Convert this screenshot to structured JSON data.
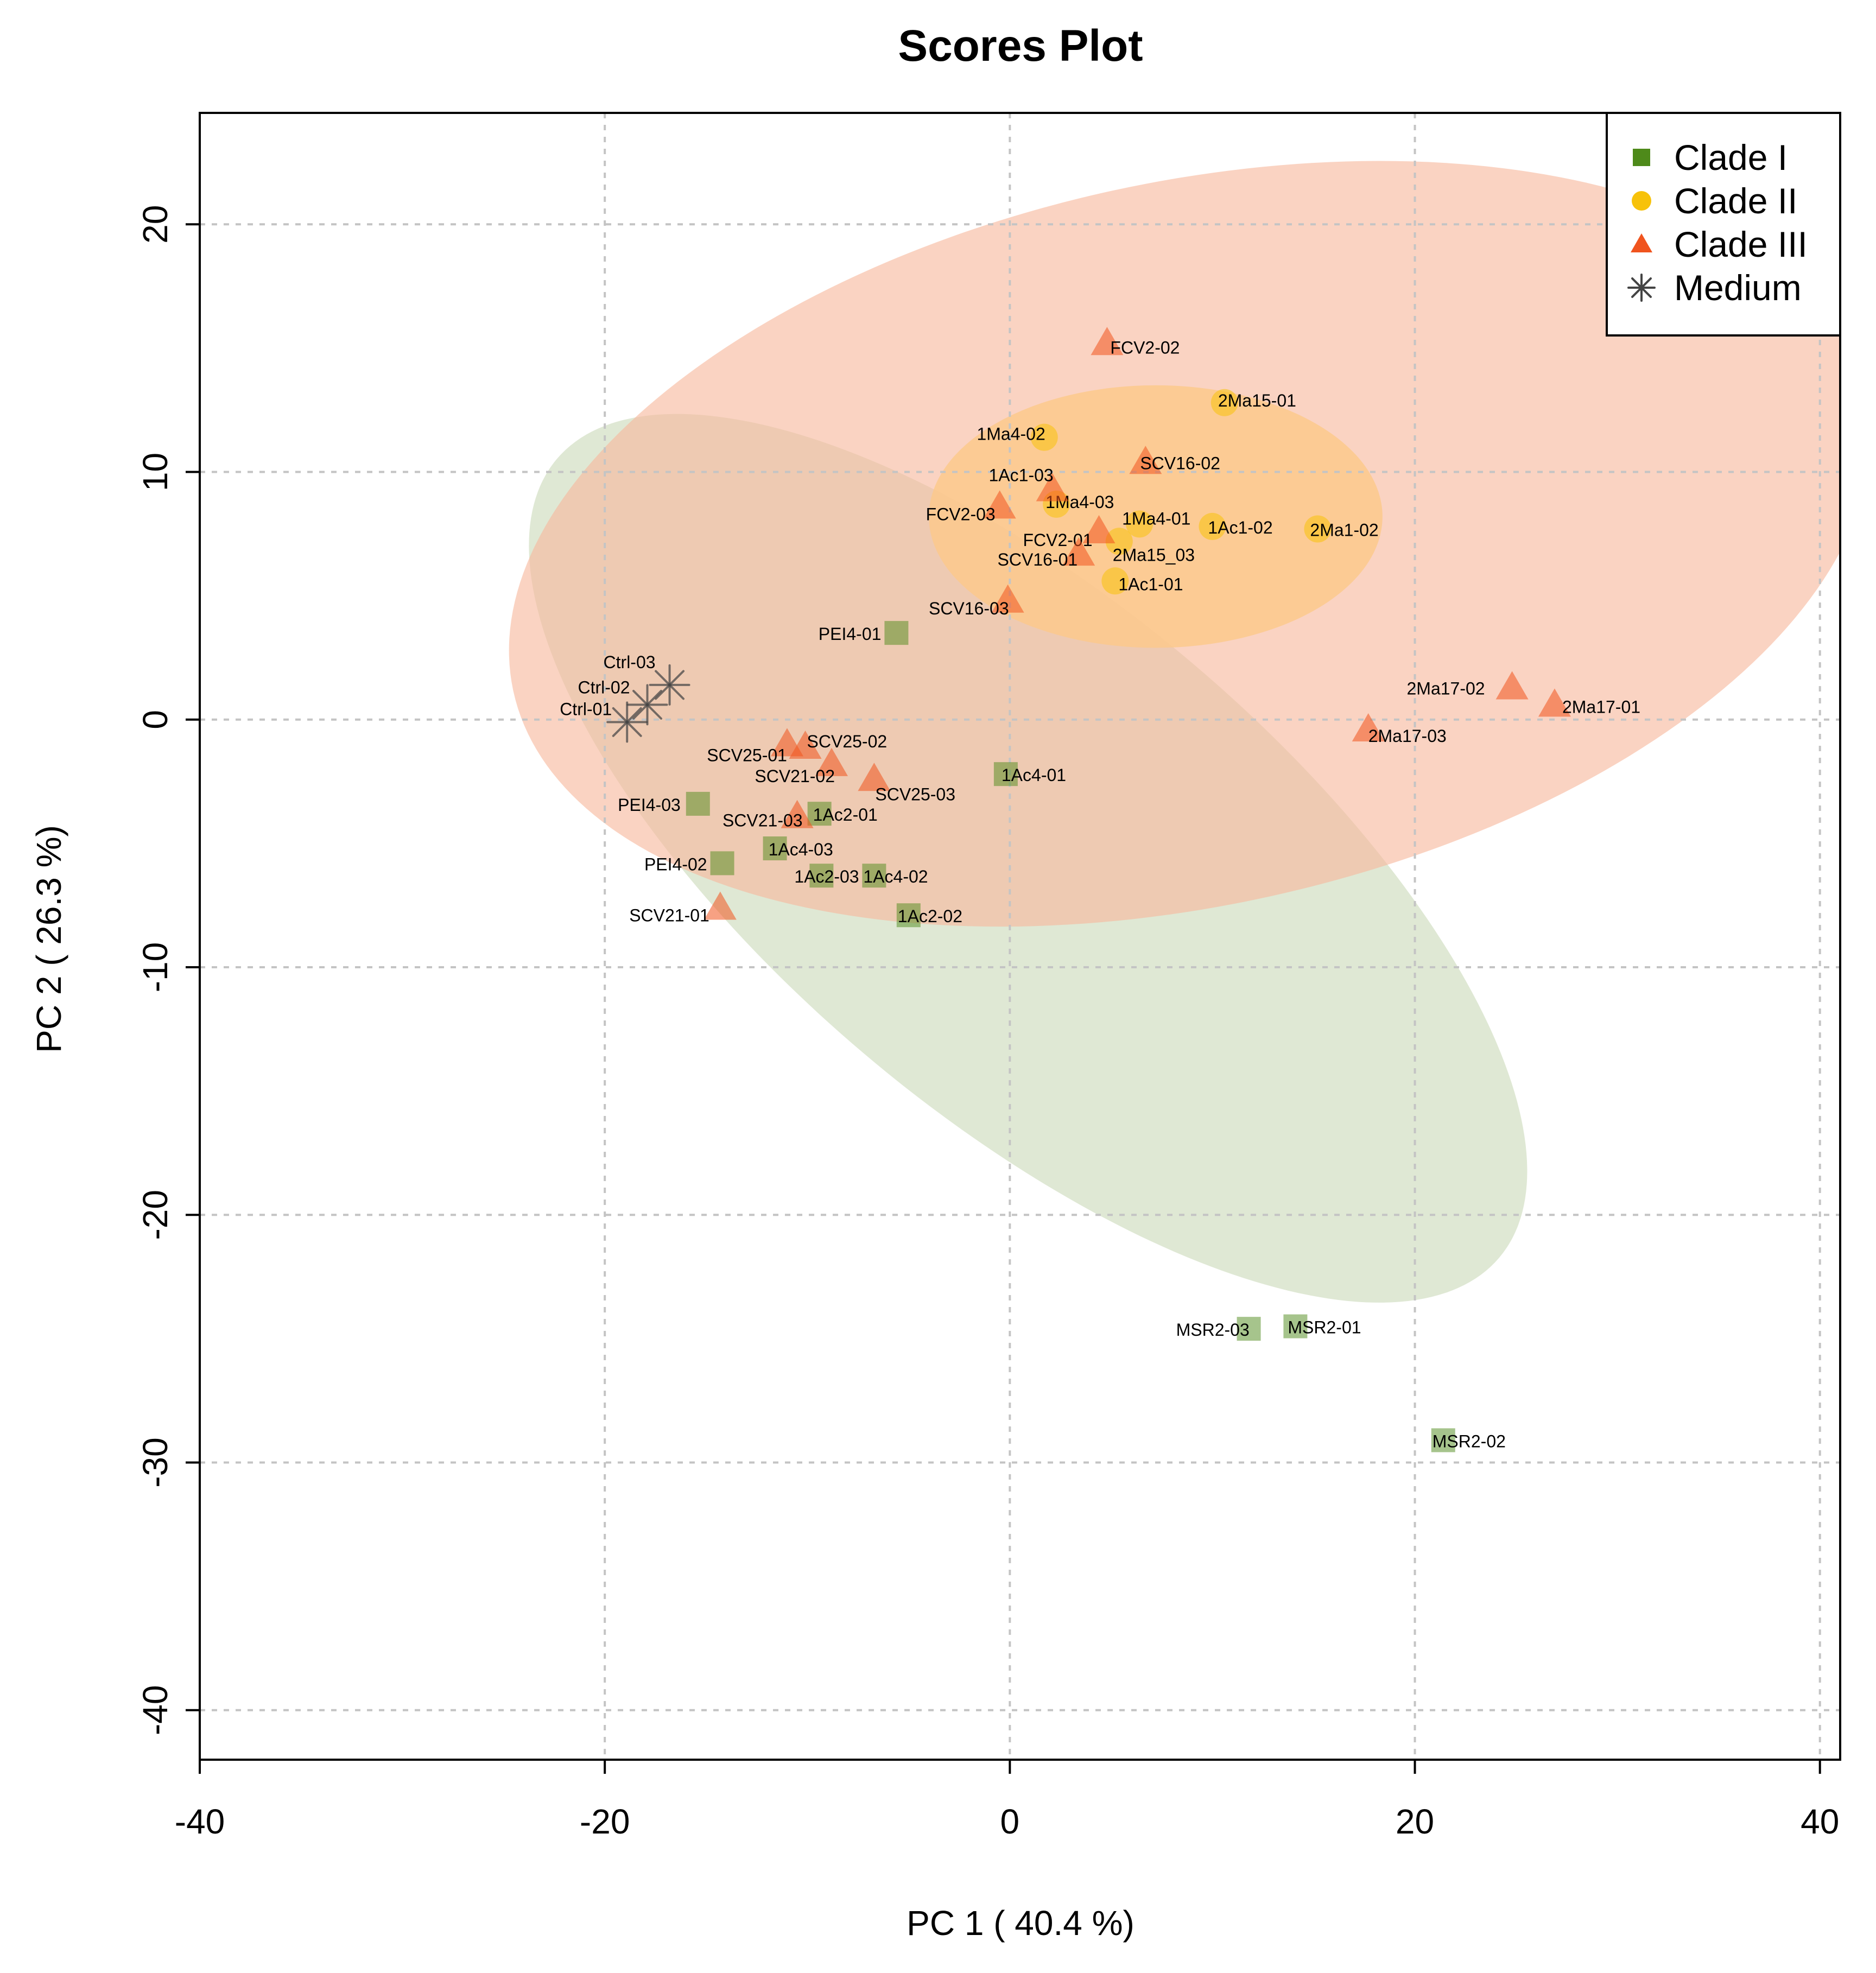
{
  "chart_data": {
    "type": "scatter",
    "title": "Scores Plot",
    "xlabel": "PC 1 ( 40.4 %)",
    "ylabel": "PC 2 ( 26.3 %)",
    "xlim": [
      -40,
      41
    ],
    "ylim": [
      -42,
      24.5
    ],
    "xticks": [
      -40,
      -20,
      0,
      20,
      40
    ],
    "yticks": [
      -40,
      -30,
      -20,
      -10,
      0,
      10,
      20
    ],
    "xtick_labels": [
      "-40",
      "-20",
      "0",
      "20",
      "40"
    ],
    "ytick_labels": [
      "-40",
      "-30",
      "-20",
      "-10",
      "0",
      "10",
      "20"
    ],
    "grid": true,
    "legend_position": "top-right",
    "colors": {
      "clade1": "#4e8a1a",
      "clade2": "#f7c20a",
      "clade3": "#f0541e",
      "medium": "#444444",
      "clade1_ellipse": "#dbe6cf",
      "clade2_ellipse": "#fcc98c",
      "clade3_ellipse": "#f7b89c"
    },
    "ellipses": [
      {
        "group": "Clade I",
        "center": [
          0.9,
          -5.6
        ],
        "semi_axes": [
          30.5,
          10.3
        ],
        "angle_deg": -40.3
      },
      {
        "group": "Clade III",
        "center": [
          8.9,
          7.1
        ],
        "semi_axes": [
          34.2,
          14.6
        ],
        "angle_deg": 12.3
      },
      {
        "group": "Clade II",
        "center": [
          7.2,
          8.2
        ],
        "semi_axes": [
          11.2,
          5.3
        ],
        "angle_deg": 0
      }
    ],
    "legend": [
      {
        "label": "Clade I",
        "shape": "square",
        "group": "clade1"
      },
      {
        "label": "Clade II",
        "shape": "circle",
        "group": "clade2"
      },
      {
        "label": "Clade III",
        "shape": "triangle",
        "group": "clade3"
      },
      {
        "label": "Medium",
        "shape": "asterisk",
        "group": "medium"
      }
    ],
    "series": [
      {
        "name": "Clade I",
        "shape": "square",
        "points": [
          {
            "label": "PEI4-01",
            "x": -5.6,
            "y": 3.5
          },
          {
            "label": "1Ac4-01",
            "x": -0.2,
            "y": -2.2
          },
          {
            "label": "PEI4-03",
            "x": -15.4,
            "y": -3.4
          },
          {
            "label": "1Ac2-01",
            "x": -9.4,
            "y": -3.8
          },
          {
            "label": "1Ac4-03",
            "x": -11.6,
            "y": -5.2
          },
          {
            "label": "PEI4-02",
            "x": -14.2,
            "y": -5.8
          },
          {
            "label": "1Ac2-03",
            "x": -9.3,
            "y": -6.3
          },
          {
            "label": "1Ac4-02",
            "x": -6.7,
            "y": -6.3
          },
          {
            "label": "1Ac2-02",
            "x": -5.0,
            "y": -7.9
          },
          {
            "label": "MSR2-03",
            "x": 11.8,
            "y": -24.6
          },
          {
            "label": "MSR2-01",
            "x": 14.1,
            "y": -24.5
          },
          {
            "label": "MSR2-02",
            "x": 21.4,
            "y": -29.1
          }
        ]
      },
      {
        "name": "Clade II",
        "shape": "circle",
        "points": [
          {
            "label": "2Ma15-01",
            "x": 10.6,
            "y": 12.8
          },
          {
            "label": "1Ma4-02",
            "x": 1.7,
            "y": 11.4
          },
          {
            "label": "1Ma4-03",
            "x": 2.3,
            "y": 8.7
          },
          {
            "label": "1Ma4-01",
            "x": 6.4,
            "y": 7.9
          },
          {
            "label": "1Ac1-02",
            "x": 10.0,
            "y": 7.8
          },
          {
            "label": "2Ma1-02",
            "x": 15.2,
            "y": 7.7
          },
          {
            "label": "2Ma15_03",
            "x": 5.4,
            "y": 7.2
          },
          {
            "label": "1Ac1-01",
            "x": 5.2,
            "y": 5.6
          }
        ]
      },
      {
        "name": "Clade III",
        "shape": "triangle",
        "points": [
          {
            "label": "FCV2-02",
            "x": 4.8,
            "y": 15.2
          },
          {
            "label": "SCV16-02",
            "x": 6.7,
            "y": 10.4
          },
          {
            "label": "1Ac1-03",
            "x": 2.1,
            "y": 9.3
          },
          {
            "label": "FCV2-03",
            "x": -0.5,
            "y": 8.6
          },
          {
            "label": "FCV2-01",
            "x": 4.4,
            "y": 7.6
          },
          {
            "label": "SCV16-01",
            "x": 3.4,
            "y": 6.7
          },
          {
            "label": "SCV16-03",
            "x": -0.1,
            "y": 4.8
          },
          {
            "label": "2Ma17-02",
            "x": 24.8,
            "y": 1.3
          },
          {
            "label": "2Ma17-01",
            "x": 26.9,
            "y": 0.6
          },
          {
            "label": "2Ma17-03",
            "x": 17.7,
            "y": -0.4
          },
          {
            "label": "SCV25-02",
            "x": -10.1,
            "y": -1.1
          },
          {
            "label": "SCV25-01",
            "x": -11.0,
            "y": -1.0
          },
          {
            "label": "SCV21-02",
            "x": -8.8,
            "y": -1.8
          },
          {
            "label": "SCV25-03",
            "x": -6.7,
            "y": -2.4
          },
          {
            "label": "SCV21-03",
            "x": -10.5,
            "y": -3.9
          },
          {
            "label": "SCV21-01",
            "x": -14.3,
            "y": -7.6
          }
        ]
      },
      {
        "name": "Medium",
        "shape": "asterisk",
        "points": [
          {
            "label": "Ctrl-03",
            "x": -16.8,
            "y": 1.4
          },
          {
            "label": "Ctrl-02",
            "x": -17.9,
            "y": 0.6
          },
          {
            "label": "Ctrl-01",
            "x": -18.9,
            "y": -0.1
          }
        ]
      }
    ]
  }
}
